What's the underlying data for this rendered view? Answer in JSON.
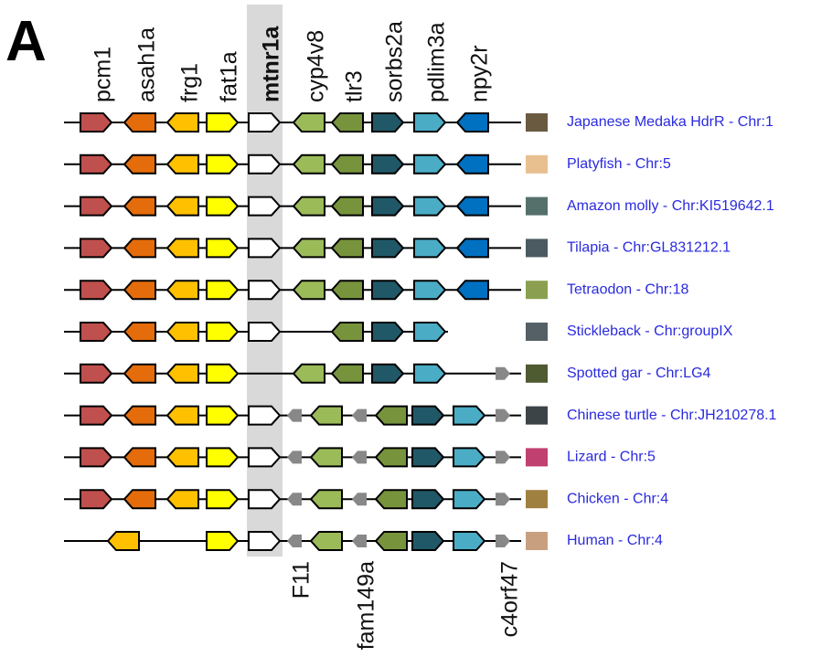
{
  "panel_label": "A",
  "top_genes": [
    "pcm1",
    "asah1a",
    "frg1",
    "fat1a",
    "mtnr1a",
    "cyp4v8",
    "tlr3",
    "sorbs2a",
    "pdlim3a",
    "npy2r"
  ],
  "bottom_genes": [
    "F11",
    "fam149a",
    "c4orf47"
  ],
  "species": [
    "Japanese Medaka HdrR - Chr:1",
    "Platyfish - Chr:5",
    "Amazon molly - Chr:KI519642.1",
    "Tilapia - Chr:GL831212.1",
    "Tetraodon - Chr:18",
    "Stickleback - Chr:groupIX",
    "Spotted gar - Chr:LG4",
    "Chinese turtle - Chr:JH210278.1",
    "Lizard - Chr:5",
    "Chicken - Chr:4",
    "Human - Chr:4"
  ]
}
